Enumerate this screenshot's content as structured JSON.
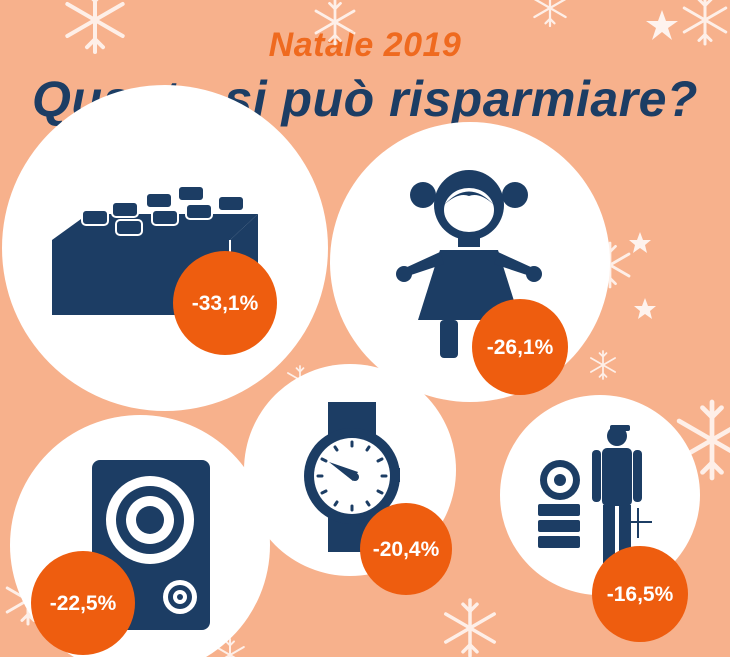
{
  "header": {
    "subtitle": "Natale 2019",
    "title": "Quanto si può risparmiare?"
  },
  "colors": {
    "background": "#f7b18c",
    "circle": "#ffffff",
    "icon": "#1c3d64",
    "badge": "#ee5d0f",
    "subtitle": "#ef6a1f"
  },
  "chart_data": {
    "type": "bar",
    "title": "Quanto si può risparmiare?",
    "subtitle": "Natale 2019",
    "categories": [
      "building-bricks-icon",
      "doll-icon",
      "speaker-icon",
      "watch-icon",
      "golf-icon"
    ],
    "values": [
      -33.1,
      -26.1,
      -22.5,
      -20.4,
      -16.5
    ],
    "labels": [
      "-33,1%",
      "-26,1%",
      "-22,5%",
      "-20,4%",
      "-16,5%"
    ]
  }
}
